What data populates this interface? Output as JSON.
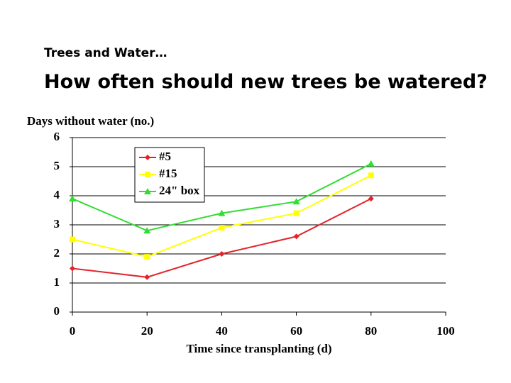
{
  "slide": {
    "kicker": "Trees and Water…",
    "heading": "How often should new trees be watered?"
  },
  "chart_data": {
    "type": "line",
    "ylabel": "Days without water (no.)",
    "xlabel": "Time since transplanting (d)",
    "x": [
      0,
      20,
      40,
      60,
      80
    ],
    "series": [
      {
        "name": "#5",
        "color": "#e3242b",
        "marker": "diamond",
        "values": [
          1.5,
          1.2,
          2,
          2.6,
          3.9
        ]
      },
      {
        "name": "#15",
        "color": "#ffff00",
        "marker": "square",
        "values": [
          2.5,
          1.9,
          2.9,
          3.4,
          4.7
        ]
      },
      {
        "name": "24\" box",
        "color": "#33dd33",
        "marker": "triangle",
        "values": [
          3.9,
          2.8,
          3.4,
          3.8,
          5.1
        ]
      }
    ],
    "xlim": [
      0,
      100
    ],
    "xticks": [
      0,
      20,
      40,
      60,
      80,
      100
    ],
    "ylim": [
      0,
      6
    ],
    "yticks": [
      0,
      1,
      2,
      3,
      4,
      5,
      6
    ],
    "grid": true,
    "legend": "upper left"
  }
}
